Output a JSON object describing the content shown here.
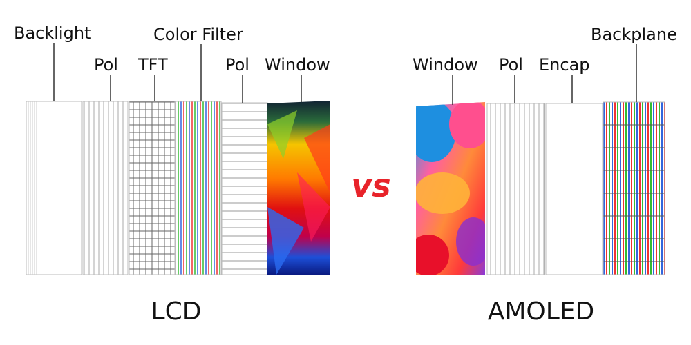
{
  "lcd": {
    "title": "LCD",
    "layers": [
      "Backlight",
      "Pol",
      "TFT",
      "Color Filter",
      "Pol",
      "Window"
    ]
  },
  "vs": "vs",
  "amoled": {
    "title": "AMOLED",
    "layers": [
      "Window",
      "Pol",
      "Encap",
      "Backplane"
    ]
  }
}
